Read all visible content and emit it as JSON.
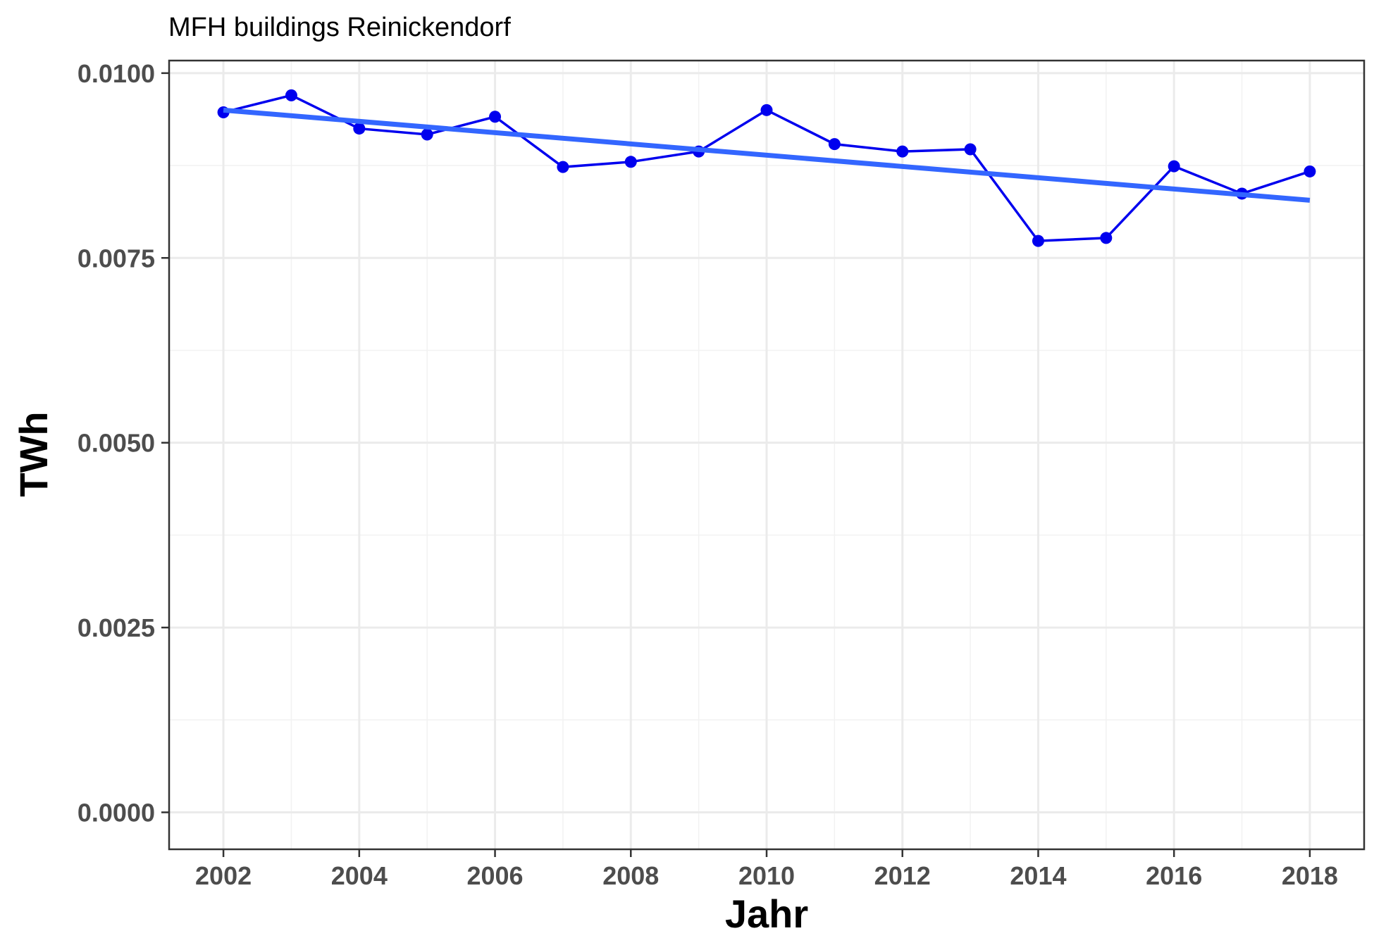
{
  "chart_data": {
    "type": "line",
    "title": "MFH buildings Reinickendorf",
    "xlabel": "Jahr",
    "ylabel": "TWh",
    "xlim": [
      2001.2,
      2018.8
    ],
    "ylim": [
      -0.0005,
      0.01017
    ],
    "x_ticks": [
      2002,
      2004,
      2006,
      2008,
      2010,
      2012,
      2014,
      2016,
      2018
    ],
    "y_ticks": [
      0.0,
      0.0025,
      0.005,
      0.0075,
      0.01
    ],
    "y_tick_labels": [
      "0.0000",
      "0.0025",
      "0.0050",
      "0.0075",
      "0.0100"
    ],
    "x_tick_labels": [
      "2002",
      "2004",
      "2006",
      "2008",
      "2010",
      "2012",
      "2014",
      "2016",
      "2018"
    ],
    "grid": true,
    "series": [
      {
        "kind": "line+points",
        "color": "#0000ee",
        "x": [
          2002,
          2003,
          2004,
          2005,
          2006,
          2007,
          2008,
          2009,
          2010,
          2011,
          2012,
          2013,
          2014,
          2015,
          2016,
          2017,
          2018
        ],
        "values": [
          0.00947,
          0.0097,
          0.00925,
          0.00917,
          0.00941,
          0.00873,
          0.0088,
          0.00894,
          0.0095,
          0.00904,
          0.00894,
          0.00897,
          0.00773,
          0.00777,
          0.00874,
          0.00837,
          0.00867
        ]
      },
      {
        "kind": "trend",
        "color": "#3366ff",
        "x": [
          2002,
          2018
        ],
        "values": [
          0.0095,
          0.00828
        ]
      }
    ]
  }
}
